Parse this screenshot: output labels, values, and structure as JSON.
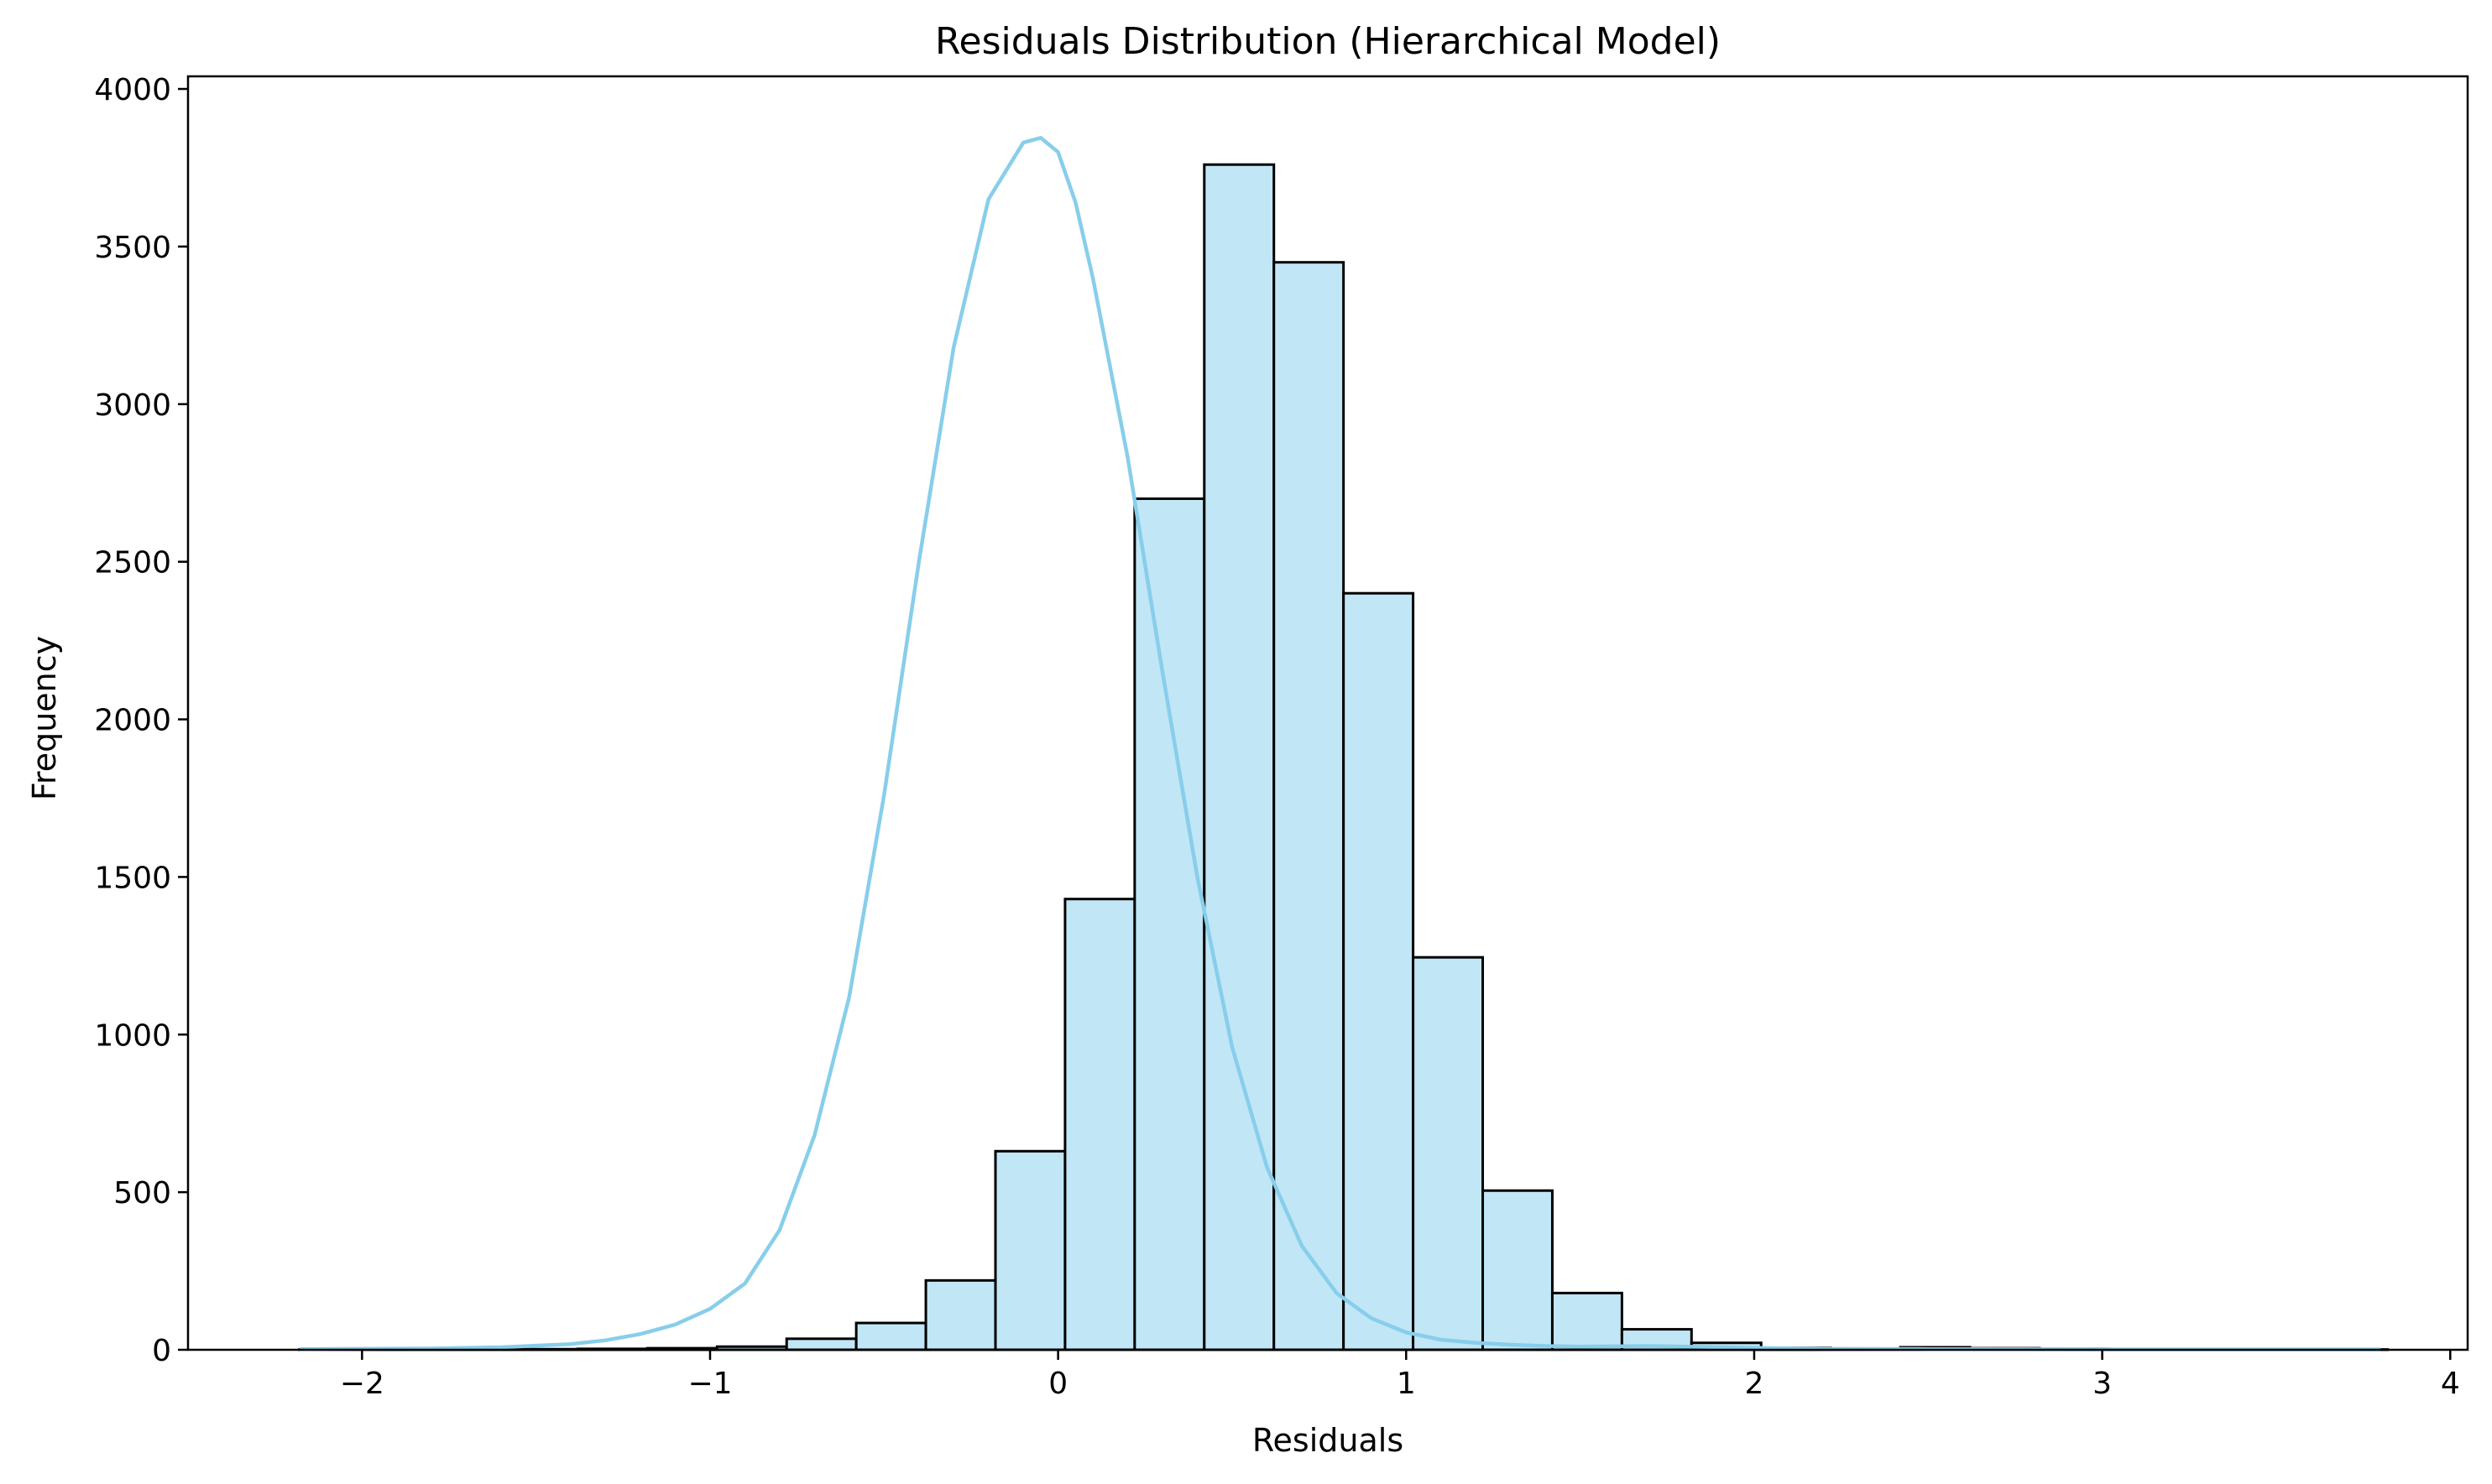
{
  "chart_data": {
    "type": "bar",
    "title": "Residuals Distribution (Hierarchical Model)",
    "xlabel": "Residuals",
    "ylabel": "Frequency",
    "xlim": [
      -2.5,
      4.05
    ],
    "ylim": [
      0,
      4040
    ],
    "xticks": [
      -2,
      -1,
      0,
      1,
      2,
      3,
      4
    ],
    "xtick_labels": [
      "−2",
      "−1",
      "0",
      "1",
      "2",
      "3",
      "4"
    ],
    "yticks": [
      0,
      500,
      1000,
      1500,
      2000,
      2500,
      3000,
      3500,
      4000
    ],
    "ytick_labels": [
      "0",
      "500",
      "1000",
      "1500",
      "2000",
      "2500",
      "3000",
      "3500",
      "4000"
    ],
    "bin_start": -2.18,
    "bin_width": 0.2,
    "values": [
      1,
      2,
      2,
      2,
      3,
      5,
      10,
      35,
      85,
      220,
      630,
      1430,
      2700,
      3760,
      3450,
      2400,
      1245,
      505,
      180,
      65,
      22,
      6,
      4,
      8,
      5,
      3,
      2,
      1,
      1,
      1
    ],
    "kde": {
      "x": [
        -2.18,
        -2.0,
        -1.8,
        -1.6,
        -1.4,
        -1.3,
        -1.2,
        -1.1,
        -1.0,
        -0.9,
        -0.8,
        -0.7,
        -0.6,
        -0.5,
        -0.4,
        -0.3,
        -0.2,
        -0.1,
        -0.05,
        0.0,
        0.05,
        0.1,
        0.2,
        0.3,
        0.4,
        0.5,
        0.6,
        0.7,
        0.8,
        0.9,
        1.0,
        1.1,
        1.2,
        1.3,
        1.4,
        1.5,
        1.6,
        1.7,
        1.8,
        2.0,
        2.2,
        2.5,
        3.0,
        3.5,
        3.8
      ],
      "y": [
        2,
        3,
        4,
        8,
        18,
        30,
        50,
        80,
        130,
        210,
        380,
        680,
        1120,
        1760,
        2500,
        3180,
        3650,
        3830,
        3845,
        3800,
        3640,
        3400,
        2830,
        2150,
        1500,
        960,
        580,
        330,
        180,
        100,
        55,
        32,
        22,
        16,
        12,
        10,
        11,
        12,
        10,
        6,
        3,
        2,
        1,
        1,
        1
      ]
    },
    "bar_color": "#c1e6f5",
    "edge_color": "#000000",
    "kde_color": "#87ceeb",
    "grid": false,
    "legend": "none"
  }
}
